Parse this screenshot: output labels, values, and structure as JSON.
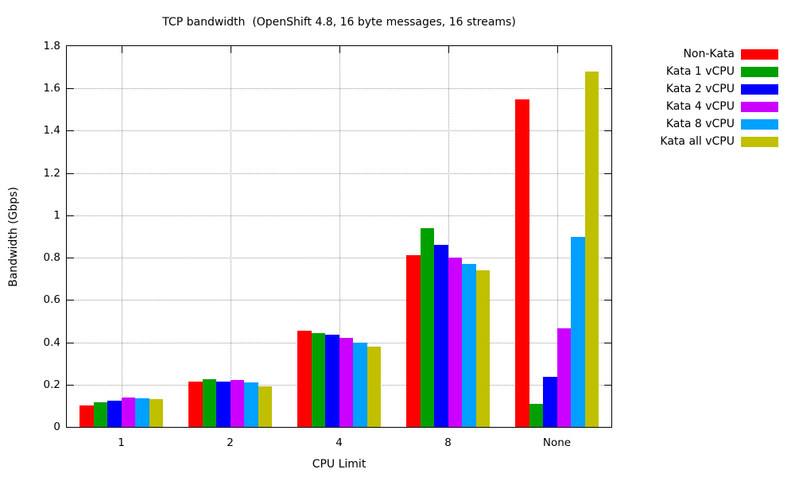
{
  "chart_data": {
    "type": "bar",
    "title": "TCP bandwidth  (OpenShift 4.8, 16 byte messages, 16 streams)",
    "xlabel": "CPU Limit",
    "ylabel": "Bandwidth (Gbps)",
    "categories": [
      "1",
      "2",
      "4",
      "8",
      "None"
    ],
    "series": [
      {
        "name": "Non-Kata",
        "color": "#ff0000",
        "values": [
          0.1,
          0.215,
          0.455,
          0.81,
          1.55
        ]
      },
      {
        "name": "Kata 1 vCPU",
        "color": "#00a000",
        "values": [
          0.115,
          0.225,
          0.445,
          0.94,
          0.11
        ]
      },
      {
        "name": "Kata 2 vCPU",
        "color": "#0000ff",
        "values": [
          0.125,
          0.215,
          0.435,
          0.86,
          0.235
        ]
      },
      {
        "name": "Kata 4 vCPU",
        "color": "#cc00ff",
        "values": [
          0.14,
          0.22,
          0.42,
          0.8,
          0.465
        ]
      },
      {
        "name": "Kata 8 vCPU",
        "color": "#00a0ff",
        "values": [
          0.135,
          0.21,
          0.4,
          0.77,
          0.9
        ]
      },
      {
        "name": "Kata all vCPU",
        "color": "#c0c000",
        "values": [
          0.13,
          0.19,
          0.38,
          0.74,
          1.68
        ]
      }
    ],
    "ylim": [
      0,
      1.8
    ],
    "ytick_step": 0.2,
    "ytick_labels": [
      "0",
      "0.2",
      "0.4",
      "0.6",
      "0.8",
      "1",
      "1.2",
      "1.4",
      "1.6",
      "1.8"
    ],
    "grid": true,
    "legend_position": "outside-top-right",
    "grid_color": "#9a9a9a",
    "border_color": "#000000"
  }
}
